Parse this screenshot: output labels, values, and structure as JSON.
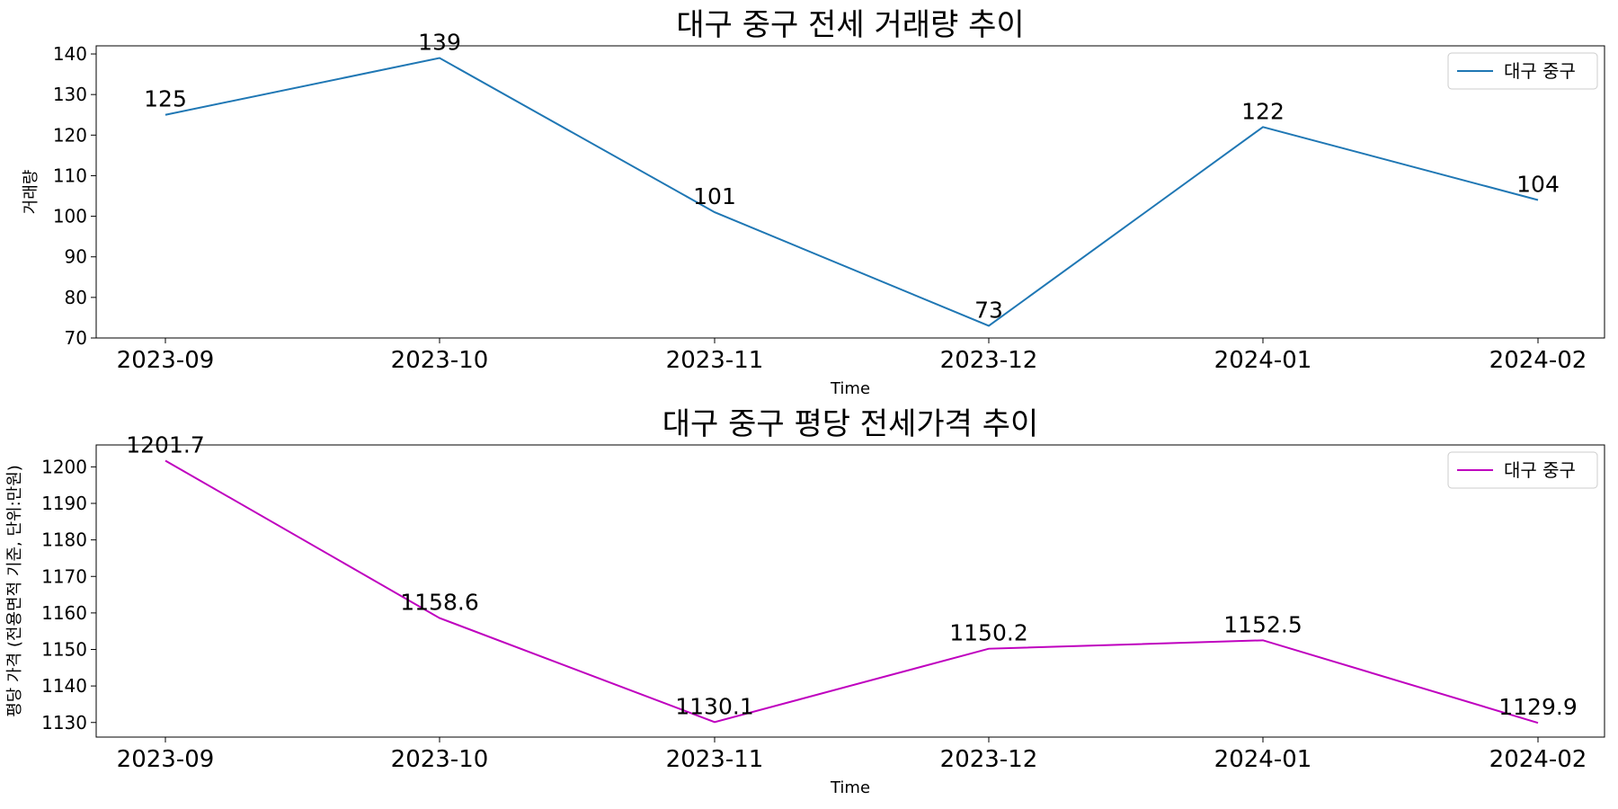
{
  "chart_data": [
    {
      "type": "line",
      "title": "대구 중구 전세 거래량 추이",
      "xlabel": "Time",
      "ylabel": "거래량",
      "categories": [
        "2023-09",
        "2023-10",
        "2023-11",
        "2023-12",
        "2024-01",
        "2024-02"
      ],
      "series": [
        {
          "name": "대구 중구",
          "values": [
            125,
            139,
            101,
            73,
            122,
            104
          ],
          "labels": [
            "125",
            "139",
            "101",
            "73",
            "122",
            "104"
          ],
          "color": "#1f77b4"
        }
      ],
      "ylim": [
        70,
        142
      ],
      "yticks": [
        70,
        80,
        90,
        100,
        110,
        120,
        130,
        140
      ],
      "legend": "top-right",
      "grid": false
    },
    {
      "type": "line",
      "title": "대구 중구 평당 전세가격 추이",
      "xlabel": "Time",
      "ylabel": "평당 가격 (전용면적 기준, 단위:만원)",
      "categories": [
        "2023-09",
        "2023-10",
        "2023-11",
        "2023-12",
        "2024-01",
        "2024-02"
      ],
      "series": [
        {
          "name": "대구 중구",
          "values": [
            1201.7,
            1158.6,
            1130.1,
            1150.2,
            1152.5,
            1129.9
          ],
          "labels": [
            "1201.7",
            "1158.6",
            "1130.1",
            "1150.2",
            "1152.5",
            "1129.9"
          ],
          "color": "#bf00bf"
        }
      ],
      "ylim": [
        1126,
        1206
      ],
      "yticks": [
        1130,
        1140,
        1150,
        1160,
        1170,
        1180,
        1190,
        1200
      ],
      "legend": "top-right",
      "grid": false
    }
  ]
}
